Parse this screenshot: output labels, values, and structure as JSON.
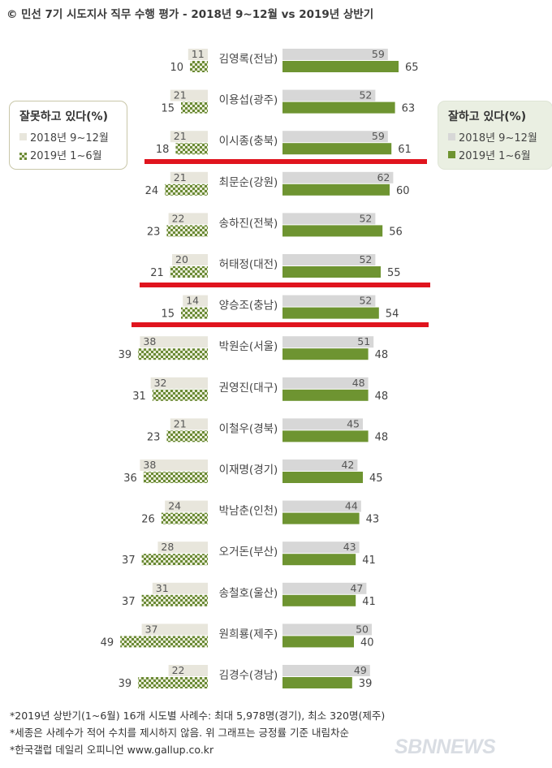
{
  "title": "민선 7기 시도지사 직무 수행 평가 - 2018년 9~12월 vs 2019년 상반기",
  "title_mark": "©",
  "legend_left": {
    "title": "잘못하고 있다(%)",
    "items": [
      "2018년 9~12월",
      "2019년 1~6월"
    ]
  },
  "legend_right": {
    "title": "잘하고 있다(%)",
    "items": [
      "2018년 9~12월",
      "2019년 1~6월"
    ]
  },
  "colors": {
    "good_2018": "#d7d7d7",
    "good_2019": "#6e9431",
    "bad_2018": "#e8e6dc",
    "bad_2019_check_dark": "#6a8a35",
    "bad_2019_check_light": "#e9ecd8",
    "highlight_line": "#e0141e"
  },
  "chart_data": {
    "type": "bar",
    "orientation": "horizontal-diverging",
    "categories": [
      "김영록(전남)",
      "이용섭(광주)",
      "이시종(충북)",
      "최문순(강원)",
      "송하진(전북)",
      "허태정(대전)",
      "양승조(충남)",
      "박원순(서울)",
      "권영진(대구)",
      "이철우(경북)",
      "이재명(경기)",
      "박남춘(인천)",
      "오거돈(부산)",
      "송철호(울산)",
      "원희룡(제주)",
      "김경수(경남)"
    ],
    "series": [
      {
        "name": "잘하고 있다 2018년 9~12월",
        "values": [
          59,
          52,
          59,
          62,
          52,
          52,
          52,
          51,
          48,
          45,
          42,
          44,
          43,
          47,
          50,
          49
        ]
      },
      {
        "name": "잘하고 있다 2019년 1~6월",
        "values": [
          65,
          63,
          61,
          60,
          56,
          55,
          54,
          48,
          48,
          48,
          45,
          43,
          41,
          41,
          40,
          39
        ]
      },
      {
        "name": "잘못하고 있다 2018년 9~12월",
        "values": [
          11,
          21,
          21,
          21,
          22,
          20,
          14,
          38,
          32,
          21,
          38,
          24,
          28,
          31,
          37,
          22
        ]
      },
      {
        "name": "잘못하고 있다 2019년 1~6월",
        "values": [
          10,
          15,
          18,
          24,
          23,
          21,
          15,
          39,
          31,
          23,
          36,
          26,
          37,
          37,
          49,
          39
        ]
      }
    ],
    "highlight_after_rows": [
      2,
      5,
      6
    ]
  },
  "notes": [
    "*2019년 상반기(1~6월) 16개 시도별 사례수: 최대 5,978명(경기), 최소 320명(제주)",
    "*세종은 사례수가 적어 수치를 제시하지 않음. 위 그래프는 긍정률 기준 내림차순",
    "*한국갤럽 데일리 오피니언 www.gallup.co.kr"
  ],
  "watermark": "SBNNEWS"
}
